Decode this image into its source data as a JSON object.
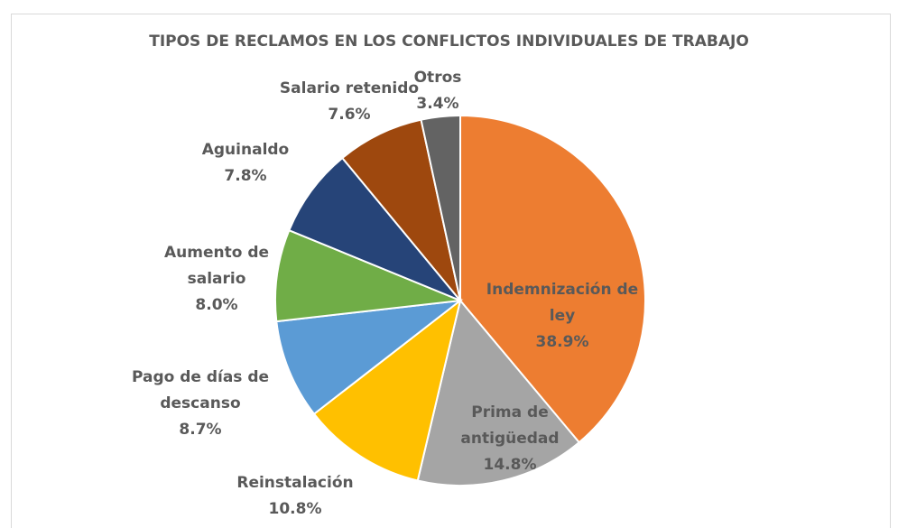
{
  "chart_data": {
    "type": "pie",
    "title": "TIPOS DE RECLAMOS EN LOS CONFLICTOS INDIVIDUALES DE TRABAJO",
    "categories": [
      "Indemnización de ley",
      "Prima de antigüedad",
      "Reinstalación",
      "Pago de días de descanso",
      "Aumento de salario",
      "Aguinaldo",
      "Salario retenido",
      "Otros"
    ],
    "values": [
      38.9,
      14.8,
      10.8,
      8.7,
      8.0,
      7.8,
      7.6,
      3.4
    ],
    "value_labels": [
      "38.9%",
      "14.8%",
      "10.8%",
      "8.7%",
      "8.0%",
      "7.8%",
      "7.6%",
      "3.4%"
    ],
    "colors": [
      "#ed7d31",
      "#a5a5a5",
      "#ffc000",
      "#5b9bd5",
      "#70ad47",
      "#264478",
      "#9e480e",
      "#636363"
    ]
  }
}
